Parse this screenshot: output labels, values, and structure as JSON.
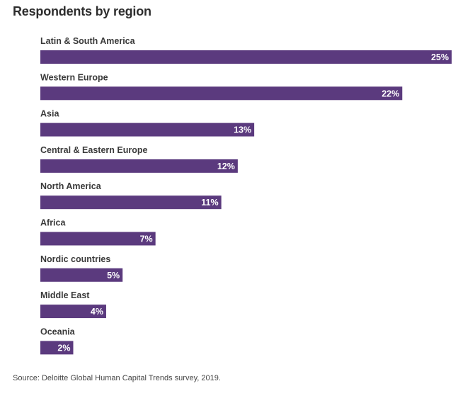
{
  "chart_data": {
    "type": "bar",
    "orientation": "horizontal",
    "title": "Respondents by region",
    "categories": [
      "Latin & South America",
      "Western Europe",
      "Asia",
      "Central & Eastern Europe",
      "North America",
      "Africa",
      "Nordic countries",
      "Middle East",
      "Oceania"
    ],
    "values": [
      25,
      22,
      13,
      12,
      11,
      7,
      5,
      4,
      2
    ],
    "value_labels": [
      "25%",
      "22%",
      "13%",
      "12%",
      "11%",
      "7%",
      "5%",
      "4%",
      "2%"
    ],
    "unit": "%",
    "xlim": [
      0,
      25
    ],
    "grid": false,
    "legend": "none",
    "bar_color": "#5b3a7e",
    "label_color": "#ffffff",
    "source": "Source: Deloitte Global Human Capital Trends survey, 2019."
  }
}
